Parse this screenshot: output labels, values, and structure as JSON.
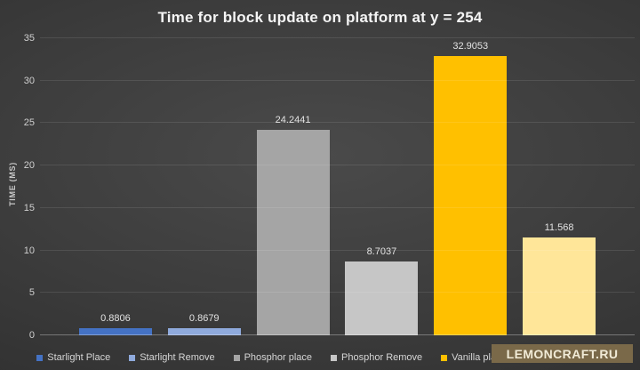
{
  "watermark": {
    "text": "LEMONCRAFT.RU",
    "bg": "#7a6949",
    "fg": "#f1ebd7"
  },
  "chart_data": {
    "type": "bar",
    "title": "Time for block update on platform at y = 254",
    "xlabel": "",
    "ylabel": "TIME (MS)",
    "ylim": [
      0,
      35
    ],
    "yticks": [
      0,
      5,
      10,
      15,
      20,
      25,
      30,
      35
    ],
    "grid": true,
    "legend_position": "bottom",
    "background": "dark-gray-radial-gradient",
    "series": [
      {
        "name": "Starlight Place",
        "value": 0.8806,
        "label": "0.8806",
        "color": "#4472C4"
      },
      {
        "name": "Starlight Remove",
        "value": 0.8679,
        "label": "0.8679",
        "color": "#8FAADC"
      },
      {
        "name": "Phosphor place",
        "value": 24.2441,
        "label": "24.2441",
        "color": "#A5A5A5"
      },
      {
        "name": "Phosphor Remove",
        "value": 8.7037,
        "label": "8.7037",
        "color": "#C6C6C6"
      },
      {
        "name": "Vanilla place",
        "value": 32.9053,
        "label": "32.9053",
        "color": "#FFC000"
      },
      {
        "name": "",
        "value": 11.568,
        "label": "11.568",
        "color": "#FFE699",
        "legend_label_hidden_by_watermark": true
      }
    ]
  }
}
